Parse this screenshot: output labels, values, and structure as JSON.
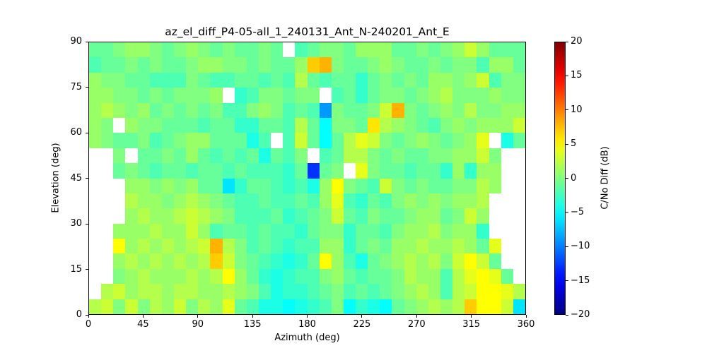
{
  "title": "az_el_diff_P4-05-all_1_240131_Ant_N-240201_Ant_E",
  "axes": {
    "xlabel": "Azimuth (deg)",
    "ylabel": "Elevation (deg)",
    "xticks": [
      0,
      45,
      90,
      135,
      180,
      225,
      270,
      315,
      360
    ],
    "yticks": [
      0,
      15,
      30,
      45,
      60,
      75,
      90
    ],
    "xlim": [
      0,
      360
    ],
    "ylim": [
      0,
      90
    ]
  },
  "colorbar": {
    "label": "C/No Diff (dB)",
    "vmin": -20,
    "vmax": 20,
    "ticks": [
      20,
      15,
      10,
      5,
      0,
      -5,
      -10,
      -15,
      -20
    ],
    "tick_labels": [
      "20",
      "15",
      "10",
      "5",
      "0",
      "−5",
      "−10",
      "−15",
      "−20"
    ]
  },
  "chart_data": {
    "type": "heatmap",
    "title": "az_el_diff_P4-05-all_1_240131_Ant_N-240201_Ant_E",
    "xlabel": "Azimuth (deg)",
    "ylabel": "Elevation (deg)",
    "value_label": "C/No Diff (dB)",
    "colormap": "jet",
    "vmin": -20,
    "vmax": 20,
    "x_range": [
      0,
      360
    ],
    "y_range": [
      0,
      90
    ],
    "x_bin_deg": 10,
    "y_bin_deg": 5,
    "grid": "rows ordered top (el 85-90) to bottom (el 0-5); 36 azimuth columns of 10 deg; null = no data (white)",
    "values": [
      [
        -1,
        -1,
        0,
        1,
        1,
        0,
        -1,
        0,
        1,
        0,
        -1,
        0,
        -1,
        -1,
        0,
        -1,
        null,
        -2,
        -1,
        0,
        0,
        -1,
        1,
        1,
        1,
        -1,
        -1,
        0,
        -1,
        0,
        1,
        3,
        1,
        -1,
        -1,
        -1
      ],
      [
        -2,
        -1,
        -1,
        0,
        -1,
        0,
        -1,
        -1,
        0,
        1,
        1,
        0,
        0,
        -1,
        0,
        -1,
        -1,
        1,
        7,
        8,
        0,
        -1,
        -1,
        0,
        1,
        0,
        -1,
        -1,
        0,
        -1,
        0,
        0,
        -2,
        1,
        1,
        -1
      ],
      [
        1,
        0,
        0,
        -1,
        -1,
        -2,
        -2,
        -2,
        0,
        -1,
        -2,
        -2,
        -1,
        -1,
        -2,
        -1,
        -2,
        2,
        -1,
        -2,
        -1,
        -1,
        -3,
        -1,
        0,
        -1,
        0,
        -1,
        1,
        1,
        0,
        1,
        3,
        -2,
        0,
        0
      ],
      [
        1,
        1,
        0,
        0,
        -1,
        0,
        -1,
        0,
        0,
        0,
        1,
        null,
        -3,
        -2,
        0,
        0,
        -1,
        0,
        0,
        null,
        -2,
        -1,
        -3,
        -1,
        0,
        0,
        -1,
        0,
        1,
        2,
        0,
        0,
        0,
        1,
        0,
        0
      ],
      [
        1,
        2,
        1,
        0,
        1,
        -1,
        0,
        -1,
        0,
        -1,
        0,
        -2,
        -2,
        0,
        1,
        0,
        -2,
        -1,
        -2,
        -9,
        0,
        -1,
        -1,
        0,
        3,
        8,
        0,
        -1,
        0,
        1,
        0,
        2,
        0,
        0,
        1,
        1
      ],
      [
        1,
        0,
        null,
        1,
        0,
        0,
        -1,
        -1,
        -1,
        -2,
        -1,
        -1,
        -3,
        -3,
        -1,
        -1,
        -2,
        2,
        -1,
        -5,
        0,
        0,
        -1,
        6,
        2,
        1,
        0,
        -1,
        -2,
        0,
        1,
        0,
        1,
        1,
        1,
        3
      ],
      [
        1,
        0,
        -1,
        -1,
        0,
        -2,
        -1,
        0,
        1,
        1,
        -1,
        -1,
        -1,
        -4,
        -2,
        null,
        -2,
        3,
        -1,
        -5,
        -1,
        2,
        4,
        3,
        0,
        -1,
        0,
        1,
        0,
        -1,
        0,
        1,
        4,
        null,
        -4,
        -1
      ],
      [
        null,
        null,
        0,
        null,
        -1,
        -1,
        0,
        -1,
        1,
        -1,
        -2,
        -1,
        -2,
        -1,
        -4,
        -1,
        -2,
        0,
        null,
        -2,
        -1,
        2,
        2,
        0,
        -1,
        0,
        -1,
        -1,
        0,
        0,
        1,
        1,
        3,
        0,
        null,
        null
      ],
      [
        null,
        null,
        -1,
        0,
        -1,
        -2,
        -1,
        -1,
        -2,
        -1,
        -1,
        -2,
        -1,
        -2,
        -2,
        -2,
        -3,
        -1,
        -13,
        -1,
        0,
        null,
        4,
        0,
        -1,
        -1,
        -2,
        -1,
        -1,
        -3,
        1,
        -3,
        1,
        1,
        null,
        null
      ],
      [
        null,
        null,
        null,
        1,
        1,
        0,
        1,
        0,
        1,
        -1,
        -1,
        -6,
        -3,
        -1,
        -1,
        -2,
        -3,
        -2,
        -4,
        1,
        5,
        0,
        -1,
        -2,
        3,
        0,
        -1,
        0,
        -1,
        -1,
        0,
        0,
        2,
        1,
        null,
        null
      ],
      [
        null,
        null,
        null,
        2,
        1,
        1,
        0,
        1,
        2,
        1,
        0,
        -1,
        -2,
        -2,
        -1,
        -2,
        -2,
        -1,
        -2,
        1,
        4,
        -2,
        -3,
        -1,
        -2,
        0,
        1,
        0,
        1,
        0,
        1,
        1,
        2,
        null,
        null,
        null
      ],
      [
        null,
        null,
        null,
        1,
        2,
        1,
        1,
        2,
        3,
        2,
        1,
        0,
        -2,
        -2,
        -2,
        -1,
        -3,
        -2,
        -1,
        0,
        3,
        -1,
        -2,
        0,
        -1,
        -1,
        0,
        1,
        1,
        -1,
        0,
        3,
        1,
        null,
        null,
        null
      ],
      [
        null,
        null,
        1,
        1,
        1,
        2,
        1,
        1,
        3,
        1,
        -2,
        -1,
        -1,
        -2,
        -1,
        -2,
        -2,
        -3,
        -1,
        0,
        0,
        -3,
        -1,
        -1,
        -2,
        0,
        1,
        1,
        2,
        0,
        1,
        1,
        -3,
        null,
        null,
        null
      ],
      [
        null,
        null,
        5,
        1,
        2,
        1,
        2,
        1,
        2,
        3,
        8,
        2,
        0,
        -2,
        -1,
        -2,
        -3,
        -2,
        -2,
        1,
        1,
        -3,
        -1,
        0,
        -1,
        1,
        1,
        2,
        1,
        1,
        2,
        1,
        -1,
        4,
        null,
        null
      ],
      [
        null,
        null,
        1,
        2,
        1,
        2,
        1,
        2,
        1,
        2,
        7,
        3,
        0,
        -1,
        -2,
        -3,
        -4,
        -3,
        -1,
        5,
        1,
        -2,
        -4,
        -1,
        0,
        1,
        2,
        1,
        2,
        0,
        3,
        5,
        3,
        -1,
        null,
        null
      ],
      [
        null,
        null,
        0,
        1,
        2,
        1,
        1,
        1,
        2,
        1,
        2,
        5,
        1,
        -1,
        -3,
        -4,
        -3,
        -2,
        -2,
        0,
        1,
        -1,
        -2,
        -1,
        -1,
        0,
        2,
        1,
        1,
        -2,
        2,
        4,
        5,
        4,
        -1,
        null
      ],
      [
        null,
        2,
        3,
        1,
        2,
        2,
        1,
        2,
        2,
        1,
        1,
        2,
        1,
        0,
        -2,
        -4,
        -3,
        -3,
        -2,
        -1,
        0,
        -2,
        -1,
        -2,
        -1,
        0,
        1,
        2,
        1,
        -2,
        2,
        3,
        5,
        5,
        4,
        2
      ],
      [
        2,
        3,
        0,
        3,
        0,
        2,
        1,
        3,
        0,
        2,
        1,
        4,
        -1,
        -2,
        -4,
        -4,
        -5,
        -4,
        -3,
        -2,
        0,
        -5,
        -3,
        -4,
        -5,
        -1,
        0,
        1,
        2,
        1,
        2,
        7,
        5,
        5,
        3,
        -6
      ]
    ]
  }
}
